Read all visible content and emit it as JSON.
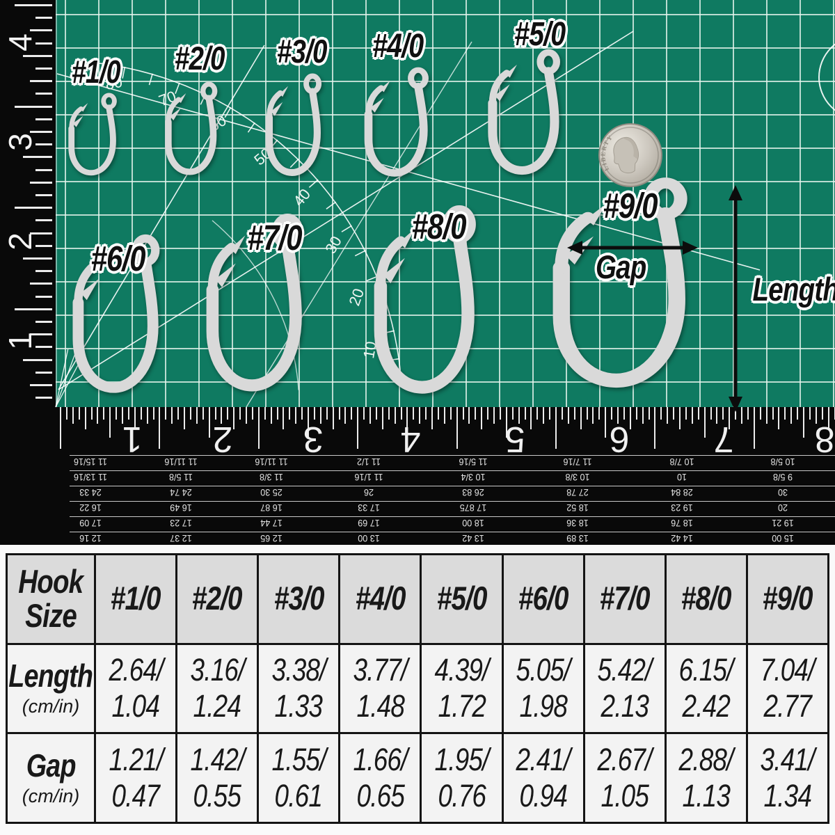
{
  "colors": {
    "mat_green": "#0f7a61",
    "grid_line": "rgba(230,245,238,0.8)",
    "hook_silver": "#d9d9d9",
    "ruler_black": "#090909",
    "table_header_bg": "#dbdbdb",
    "table_cell_bg": "#f3f3f3",
    "label_ink": "#101010"
  },
  "photo": {
    "hook_labels": [
      "#1/0",
      "#2/0",
      "#3/0",
      "#4/0",
      "#5/0",
      "#6/0",
      "#7/0",
      "#8/0",
      "#9/0"
    ],
    "coin": {
      "name": "dime",
      "text": "LIBERTY"
    },
    "annotations": {
      "gap": "Gap",
      "length": "Length"
    },
    "mat_arc_numbers": [
      "80",
      "70",
      "60",
      "50",
      "40",
      "30",
      "20",
      "10"
    ],
    "left_ruler_numbers": [
      "4",
      "3",
      "2",
      "1"
    ],
    "bottom_ruler": {
      "inch_numbers": [
        "1",
        "2",
        "3",
        "4",
        "5",
        "6",
        "7",
        "8"
      ],
      "scale_rows": [
        [
          "11 15/16",
          "11 11/16",
          "11 11/16",
          "11 1/2",
          "11 5/16",
          "11 7/16",
          "10 7/8",
          "10 5/8"
        ],
        [
          "11 13/16",
          "11 5/8",
          "11 3/8",
          "11 1/16",
          "10 3/4",
          "10 3/8",
          "10",
          "9 5/8"
        ],
        [
          "24 33",
          "24 74",
          "25 30",
          "26",
          "26 83",
          "27 78",
          "28 84",
          "30"
        ],
        [
          "16 22",
          "16 49",
          "16 87",
          "17 33",
          "17 875",
          "18 52",
          "19 23",
          "20"
        ],
        [
          "17 09",
          "17 23",
          "17 44",
          "17 69",
          "18 00",
          "18 36",
          "18 76",
          "19 21"
        ],
        [
          "12 16",
          "12 37",
          "12 65",
          "13 00",
          "13 42",
          "13 89",
          "14 42",
          "15 00"
        ]
      ]
    }
  },
  "table": {
    "corner": [
      "Hook",
      "Size"
    ],
    "sizes": [
      "#1/0",
      "#2/0",
      "#3/0",
      "#4/0",
      "#5/0",
      "#6/0",
      "#7/0",
      "#8/0",
      "#9/0"
    ],
    "rows": [
      {
        "label": "Length",
        "unit": "(cm/in)",
        "top": [
          "2.64/",
          "3.16/",
          "3.38/",
          "3.77/",
          "4.39/",
          "5.05/",
          "5.42/",
          "6.15/",
          "7.04/"
        ],
        "bottom": [
          "1.04",
          "1.24",
          "1.33",
          "1.48",
          "1.72",
          "1.98",
          "2.13",
          "2.42",
          "2.77"
        ]
      },
      {
        "label": "Gap",
        "unit": "(cm/in)",
        "top": [
          "1.21/",
          "1.42/",
          "1.55/",
          "1.66/",
          "1.95/",
          "2.41/",
          "2.67/",
          "2.88/",
          "3.41/"
        ],
        "bottom": [
          "0.47",
          "0.55",
          "0.61",
          "0.65",
          "0.76",
          "0.94",
          "1.05",
          "1.13",
          "1.34"
        ]
      }
    ]
  }
}
